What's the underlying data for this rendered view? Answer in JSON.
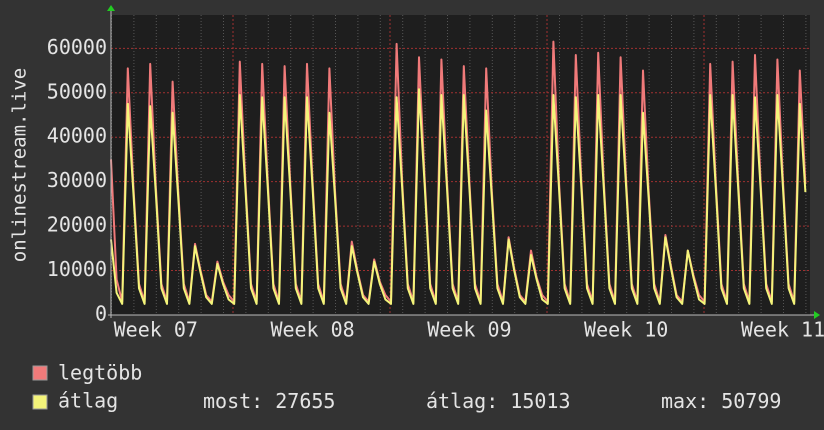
{
  "chart_data": {
    "type": "line",
    "y_label": "onlinestream.live",
    "categories": [
      null,
      null,
      null,
      null,
      null,
      null,
      null,
      null,
      "Week 07",
      null,
      null,
      null,
      null,
      null,
      null,
      null,
      null,
      null,
      null,
      null,
      null,
      null,
      null,
      null,
      null,
      null,
      null,
      null,
      null,
      null,
      null,
      null,
      null,
      null,
      null,
      null,
      "Week 08",
      null,
      null,
      null,
      null,
      null,
      null,
      null,
      null,
      null,
      null,
      null,
      null,
      null,
      null,
      null,
      null,
      null,
      null,
      null,
      null,
      null,
      null,
      null,
      null,
      null,
      null,
      null,
      "Week 09",
      null,
      null,
      null,
      null,
      null,
      null,
      null,
      null,
      null,
      null,
      null,
      null,
      null,
      null,
      null,
      null,
      null,
      null,
      null,
      null,
      null,
      null,
      null,
      null,
      null,
      null,
      null,
      "Week 10",
      null,
      null,
      null,
      null,
      null,
      null,
      null,
      null,
      null,
      null,
      null,
      null,
      null,
      null,
      null,
      null,
      null,
      null,
      null,
      null,
      null,
      null,
      null,
      null,
      null,
      null,
      null,
      "Week 11",
      null,
      null,
      null,
      null
    ],
    "series": [
      {
        "name": "legtöbb",
        "color": "#f07a7a",
        "values": [
          35000,
          8000,
          3000,
          55500,
          29000,
          7000,
          3000,
          56500,
          29000,
          7000,
          3000,
          52500,
          28000,
          7000,
          3000,
          16000,
          10000,
          4500,
          3000,
          12000,
          7500,
          4500,
          3000,
          57000,
          30000,
          7000,
          3000,
          56500,
          30000,
          7000,
          3000,
          56000,
          30000,
          7000,
          3000,
          56500,
          30000,
          7000,
          3000,
          55500,
          28000,
          7000,
          3000,
          16500,
          10000,
          4500,
          3000,
          12500,
          7500,
          4500,
          3000,
          61000,
          30000,
          7000,
          3000,
          58000,
          31000,
          7000,
          3000,
          57500,
          30000,
          7000,
          3000,
          56000,
          30000,
          7000,
          3000,
          55500,
          28000,
          7000,
          3000,
          17500,
          10500,
          4500,
          3000,
          14500,
          8500,
          4500,
          3000,
          61500,
          30000,
          7000,
          3000,
          58500,
          30000,
          7000,
          3000,
          59000,
          30000,
          7000,
          3000,
          58000,
          30000,
          7000,
          3000,
          55000,
          28000,
          7000,
          3000,
          18000,
          11000,
          4500,
          3000,
          14500,
          9000,
          4500,
          3000,
          56500,
          30000,
          7000,
          3000,
          57000,
          30000,
          7000,
          3000,
          58500,
          30000,
          7000,
          3000,
          57500,
          30000,
          7000,
          3000,
          55000,
          29500
        ]
      },
      {
        "name": "átlag",
        "color": "#f4f47a",
        "values": [
          17000,
          5000,
          2500,
          47500,
          27500,
          6000,
          2500,
          47000,
          27500,
          6000,
          2500,
          45500,
          26500,
          6000,
          2500,
          15500,
          9500,
          4000,
          2500,
          11500,
          7000,
          3500,
          2500,
          49500,
          28500,
          6000,
          2500,
          49000,
          28500,
          6000,
          2500,
          49000,
          28500,
          6000,
          2500,
          49000,
          28500,
          6000,
          2500,
          45500,
          26500,
          6000,
          2500,
          15500,
          9500,
          4000,
          2500,
          12000,
          7000,
          3500,
          2500,
          49000,
          28500,
          6000,
          2500,
          50799,
          29500,
          6000,
          2500,
          49500,
          28500,
          6000,
          2500,
          49500,
          28500,
          6000,
          2500,
          46000,
          26500,
          6000,
          2500,
          17000,
          10000,
          4000,
          2500,
          13500,
          8000,
          3500,
          2500,
          49500,
          28500,
          6000,
          2500,
          49000,
          28500,
          6000,
          2500,
          49500,
          28500,
          6000,
          2500,
          49500,
          28500,
          6000,
          2500,
          45500,
          26500,
          6000,
          2500,
          17500,
          10500,
          4000,
          2500,
          14500,
          8500,
          3500,
          2500,
          49500,
          28500,
          6000,
          2500,
          49500,
          28500,
          6000,
          2500,
          49000,
          28500,
          6000,
          2500,
          49500,
          28500,
          6000,
          2500,
          47500,
          27655
        ]
      }
    ],
    "stats": [
      {
        "label": "most:",
        "value": 27655
      },
      {
        "label": "átlag:",
        "value": 15013
      },
      {
        "label": "max:",
        "value": 50799
      }
    ],
    "ylim": [
      0,
      67500
    ],
    "yticks": [
      0,
      10000,
      20000,
      30000,
      40000,
      50000,
      60000
    ],
    "grid": true
  }
}
